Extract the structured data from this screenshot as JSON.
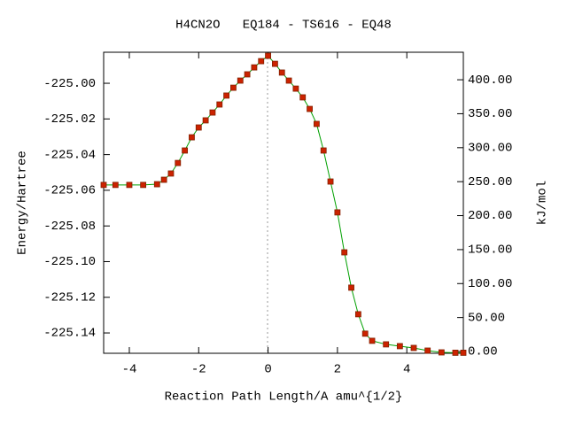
{
  "chart_data": {
    "type": "line",
    "title": "H4CN2O   EQ184 - TS616 - EQ48",
    "xlabel": "Reaction Path Length/A amu^{1/2}",
    "ylabel": "Energy/Hartree",
    "y2label": "kJ/mol",
    "x": [
      -4.74,
      -4.4,
      -4.0,
      -3.6,
      -3.2,
      -3.0,
      -2.8,
      -2.6,
      -2.4,
      -2.2,
      -2.0,
      -1.8,
      -1.6,
      -1.4,
      -1.2,
      -1.0,
      -0.8,
      -0.6,
      -0.4,
      -0.2,
      0.0,
      0.2,
      0.4,
      0.6,
      0.8,
      1.0,
      1.2,
      1.4,
      1.6,
      1.8,
      2.0,
      2.2,
      2.4,
      2.6,
      2.8,
      3.0,
      3.4,
      3.8,
      4.2,
      4.6,
      5.0,
      5.4,
      5.63
    ],
    "series": [
      {
        "name": "Energy",
        "color": "#00a000",
        "marker_color": "#cc2200",
        "values": [
          -225.057,
          -225.057,
          -225.057,
          -225.057,
          -225.0566,
          -225.0541,
          -225.0506,
          -225.0447,
          -225.0377,
          -225.0303,
          -225.0248,
          -225.0208,
          -225.0164,
          -225.0119,
          -225.0069,
          -225.0025,
          -224.9985,
          -224.995,
          -224.9911,
          -224.9876,
          -224.9846,
          -224.9891,
          -224.994,
          -224.9985,
          -225.003,
          -225.0079,
          -225.0144,
          -225.0228,
          -225.0377,
          -225.0551,
          -225.0724,
          -225.0948,
          -225.1146,
          -225.1295,
          -225.1404,
          -225.1444,
          -225.1464,
          -225.1474,
          -225.1484,
          -225.1499,
          -225.1509,
          -225.1511,
          -225.1511
        ]
      }
    ],
    "xlim": [
      -4.74,
      5.63
    ],
    "xticks": [
      -4,
      -2,
      0,
      2,
      4
    ],
    "ylim": [
      -225.1514,
      -224.9826
    ],
    "yticks": [
      {
        "value": -225.0,
        "label": "-225.00"
      },
      -225.02,
      -225.04,
      -225.06,
      -225.08,
      {
        "value": -225.1,
        "label": "-225.10"
      },
      -225.12,
      -225.14
    ],
    "y2lim": [
      -2.6,
      440.5
    ],
    "y2ticks": [
      {
        "value": 0,
        "label": "0.00"
      },
      {
        "value": 50,
        "label": "50.00"
      },
      {
        "value": 100,
        "label": "100.00"
      },
      {
        "value": 150,
        "label": "150.00"
      },
      {
        "value": 200,
        "label": "200.00"
      },
      {
        "value": 250,
        "label": "250.00"
      },
      {
        "value": 300,
        "label": "300.00"
      },
      {
        "value": 350,
        "label": "350.00"
      },
      {
        "value": 400,
        "label": "400.00"
      }
    ]
  }
}
